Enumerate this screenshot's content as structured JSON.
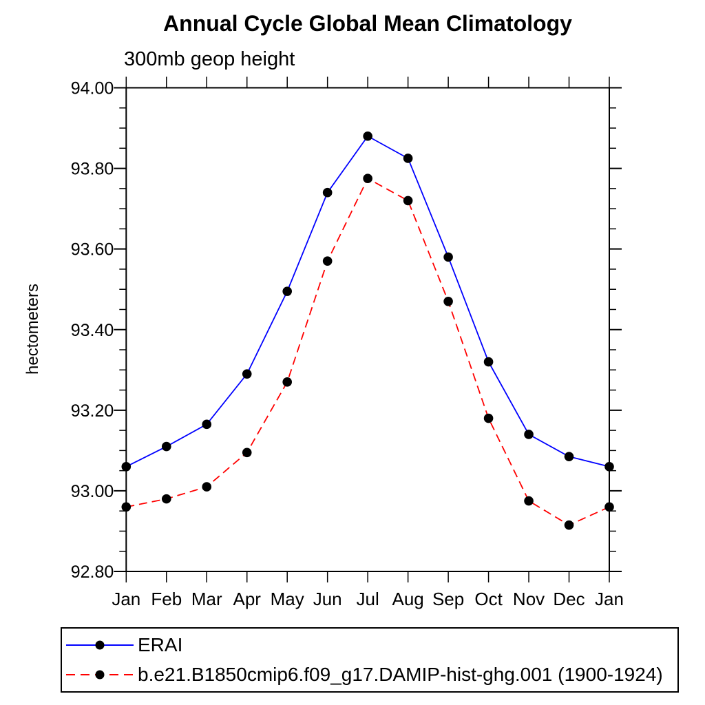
{
  "page": {
    "background_color": "#ffffff"
  },
  "chart_data": {
    "type": "line",
    "title": "Annual Cycle Global Mean Climatology",
    "subtitle": "300mb geop height",
    "ylabel": "hectometers",
    "categories": [
      "Jan",
      "Feb",
      "Mar",
      "Apr",
      "May",
      "Jun",
      "Jul",
      "Aug",
      "Sep",
      "Oct",
      "Nov",
      "Dec",
      "Jan"
    ],
    "series": [
      {
        "name": "ERAI",
        "color": "#0000ff",
        "line_style": "solid",
        "marker": "filled-circle",
        "values": [
          93.06,
          93.11,
          93.165,
          93.29,
          93.495,
          93.74,
          93.88,
          93.825,
          93.58,
          93.32,
          93.14,
          93.085,
          93.06
        ]
      },
      {
        "name": "b.e21.B1850cmip6.f09_g17.DAMIP-hist-ghg.001 (1900-1924)",
        "color": "#ff0000",
        "line_style": "dashed",
        "marker": "filled-circle",
        "values": [
          92.96,
          92.98,
          93.01,
          93.095,
          93.27,
          93.57,
          93.775,
          93.72,
          93.47,
          93.18,
          92.975,
          92.915,
          92.96
        ]
      }
    ],
    "ylim": [
      92.8,
      94.0
    ],
    "ytick_labels": [
      "94.00",
      "93.80",
      "93.60",
      "93.40",
      "93.20",
      "93.00",
      "92.80"
    ],
    "ytick_step": 0.2,
    "ytick_minor_step": 0.05,
    "marker_color": "#000000",
    "axis_color": "#000000",
    "grid": false,
    "legend_position": "bottom-left-box"
  }
}
